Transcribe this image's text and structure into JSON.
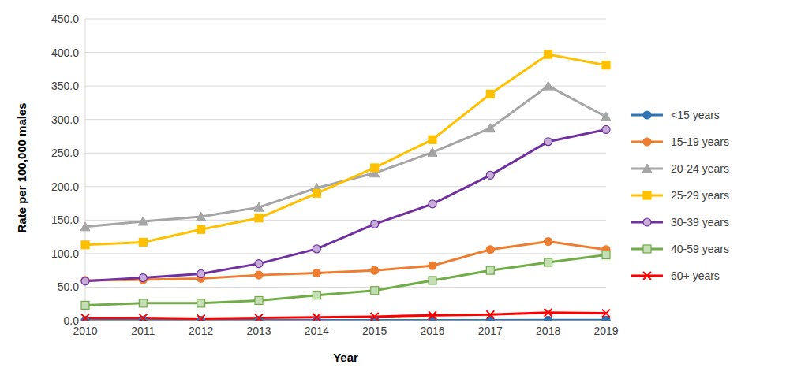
{
  "chart_data": {
    "type": "line",
    "x_label": "Year",
    "y_label": "Rate per 100,000 males",
    "categories": [
      "2010",
      "2011",
      "2012",
      "2013",
      "2014",
      "2015",
      "2016",
      "2017",
      "2018",
      "2019"
    ],
    "series": [
      {
        "name": "<15 years",
        "color": "#2e75b6",
        "marker": "circle",
        "values": [
          0.5,
          0.5,
          0.5,
          0.5,
          0.5,
          0.6,
          0.6,
          0.7,
          0.8,
          0.8
        ]
      },
      {
        "name": "15-19 years",
        "color": "#ed7d31",
        "marker": "circle",
        "values": [
          60,
          61,
          63,
          68,
          71,
          75,
          82,
          106,
          118,
          106
        ]
      },
      {
        "name": "20-24 years",
        "color": "#a5a5a5",
        "marker": "triangle",
        "values": [
          140,
          148,
          155,
          169,
          198,
          220,
          251,
          287,
          350,
          304
        ]
      },
      {
        "name": "25-29 years",
        "color": "#ffc000",
        "marker": "square",
        "values": [
          113,
          117,
          136,
          153,
          190,
          228,
          270,
          338,
          397,
          381
        ]
      },
      {
        "name": "30-39 years",
        "color": "#7030a0",
        "marker": "hollow_circle",
        "values": [
          59,
          64,
          70,
          85,
          107,
          144,
          174,
          217,
          267,
          285
        ]
      },
      {
        "name": "40-59 years",
        "color": "#70ad47",
        "marker": "hollow_square",
        "values": [
          23,
          26,
          26,
          30,
          38,
          45,
          60,
          75,
          87,
          98
        ]
      },
      {
        "name": "60+ years",
        "color": "#ff0000",
        "marker": "x",
        "values": [
          4,
          4,
          3,
          4,
          5,
          6,
          8,
          9,
          12,
          11
        ]
      }
    ],
    "ylim": [
      0,
      450
    ],
    "yticks": [
      {
        "value": 0,
        "label": "0.0"
      },
      {
        "value": 50,
        "label": "50.0"
      },
      {
        "value": 100,
        "label": "100.0"
      },
      {
        "value": 150,
        "label": "150.0"
      },
      {
        "value": 200,
        "label": "200.0"
      },
      {
        "value": 250,
        "label": "250.0"
      },
      {
        "value": 300,
        "label": "300.0"
      },
      {
        "value": 350,
        "label": "350.0"
      },
      {
        "value": 400,
        "label": "400.0"
      },
      {
        "value": 450,
        "label": "450.0"
      }
    ],
    "grid": true,
    "legend": "right"
  }
}
